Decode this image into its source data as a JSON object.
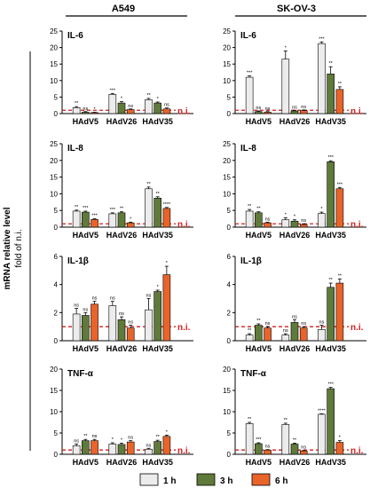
{
  "colors": {
    "1h": "#ececec",
    "3h": "#5f7a3a",
    "6h": "#e8642a",
    "ni_line": "#d21e1e",
    "axis": "#000000"
  },
  "column_titles": [
    "A549",
    "SK-OV-3"
  ],
  "y_axis_label": {
    "main": "mRNA relative level",
    "sub": "fold of n.i."
  },
  "ni_label": "n.i.",
  "legend": [
    {
      "key": "1h",
      "label": "1 h"
    },
    {
      "key": "3h",
      "label": "3 h"
    },
    {
      "key": "6h",
      "label": "6 h"
    }
  ],
  "chart_data": [
    {
      "type": "bar",
      "title": "IL-6",
      "cell_line": "A549",
      "categories": [
        "HAdV5",
        "HAdV26",
        "HAdV35"
      ],
      "yticks": [
        0,
        5,
        10,
        15,
        20,
        25
      ],
      "ylim": [
        0,
        25
      ],
      "series": [
        {
          "name": "1 h",
          "values": [
            1.8,
            5.8,
            4.2
          ],
          "err": [
            0.3,
            0.3,
            0.4
          ],
          "sig": [
            "**",
            "***",
            "**"
          ]
        },
        {
          "name": "3 h",
          "values": [
            0.4,
            3.2,
            3.2
          ],
          "err": [
            0.2,
            0.4,
            0.3
          ],
          "sig": [
            "ns",
            "*",
            "*"
          ]
        },
        {
          "name": "6 h",
          "values": [
            0.3,
            1.2,
            1.4
          ],
          "err": [
            0.1,
            0.2,
            0.3
          ],
          "sig": [
            "*",
            "ns",
            "ns"
          ]
        }
      ]
    },
    {
      "type": "bar",
      "title": "IL-6",
      "cell_line": "SK-OV-3",
      "categories": [
        "HAdV5",
        "HAdV26",
        "HAdV35"
      ],
      "yticks": [
        0,
        5,
        10,
        15,
        20,
        25
      ],
      "ylim": [
        0,
        25
      ],
      "series": [
        {
          "name": "1 h",
          "values": [
            11,
            16.5,
            21.2
          ],
          "err": [
            0.4,
            2.5,
            0.5
          ],
          "sig": [
            "***",
            "*",
            "***"
          ]
        },
        {
          "name": "3 h",
          "values": [
            0.6,
            0.8,
            12
          ],
          "err": [
            0.2,
            0.2,
            2.2
          ],
          "sig": [
            "ns",
            "ns",
            "**"
          ]
        },
        {
          "name": "6 h",
          "values": [
            0.4,
            0.9,
            7.3
          ],
          "err": [
            0.2,
            0.2,
            0.8
          ],
          "sig": [
            "ns",
            "ns",
            "**"
          ]
        }
      ]
    },
    {
      "type": "bar",
      "title": "IL-8",
      "cell_line": "A549",
      "categories": [
        "HAdV5",
        "HAdV26",
        "HAdV35"
      ],
      "yticks": [
        0,
        5,
        10,
        15,
        20,
        25
      ],
      "ylim": [
        0,
        25
      ],
      "series": [
        {
          "name": "1 h",
          "values": [
            4.8,
            4,
            11.5
          ],
          "err": [
            0.3,
            0.3,
            0.5
          ],
          "sig": [
            "**",
            "***",
            "**"
          ]
        },
        {
          "name": "3 h",
          "values": [
            4.5,
            4.3,
            8.7
          ],
          "err": [
            0.3,
            0.3,
            0.4
          ],
          "sig": [
            "***",
            "**",
            "**"
          ]
        },
        {
          "name": "6 h",
          "values": [
            2.3,
            1.3,
            5.6
          ],
          "err": [
            0.2,
            0.2,
            0.3
          ],
          "sig": [
            "***",
            "*",
            "****"
          ]
        }
      ]
    },
    {
      "type": "bar",
      "title": "IL-8",
      "cell_line": "SK-OV-3",
      "categories": [
        "HAdV5",
        "HAdV26",
        "HAdV35"
      ],
      "yticks": [
        0,
        5,
        10,
        15,
        20,
        25
      ],
      "ylim": [
        0,
        25
      ],
      "series": [
        {
          "name": "1 h",
          "values": [
            4.8,
            2.2,
            4.1
          ],
          "err": [
            0.5,
            0.6,
            0.4
          ],
          "sig": [
            "**",
            "*",
            "*"
          ]
        },
        {
          "name": "3 h",
          "values": [
            4.3,
            1.8,
            19.6
          ],
          "err": [
            0.3,
            0.4,
            0.3
          ],
          "sig": [
            "**",
            "*",
            "***"
          ]
        },
        {
          "name": "6 h",
          "values": [
            1.3,
            0.8,
            11.5
          ],
          "err": [
            0.2,
            0.2,
            0.4
          ],
          "sig": [
            "ns",
            "ns",
            "***"
          ]
        }
      ]
    },
    {
      "type": "bar",
      "title": "IL-1β",
      "cell_line": "A549",
      "categories": [
        "HAdV5",
        "HAdV26",
        "HAdV35"
      ],
      "yticks": [
        0,
        2,
        4,
        6
      ],
      "ylim": [
        0,
        6
      ],
      "series": [
        {
          "name": "1 h",
          "values": [
            1.9,
            2.5,
            2.2
          ],
          "err": [
            0.4,
            0.3,
            0.8
          ],
          "sig": [
            "ns",
            "ns",
            "ns"
          ]
        },
        {
          "name": "3 h",
          "values": [
            1.8,
            1.5,
            3.5
          ],
          "err": [
            0.2,
            0.2,
            0.1
          ],
          "sig": [
            "ns",
            "ns",
            "*"
          ]
        },
        {
          "name": "6 h",
          "values": [
            2.6,
            0.9,
            4.7
          ],
          "err": [
            0.2,
            0.2,
            0.6
          ],
          "sig": [
            "ns",
            "ns",
            "*"
          ]
        }
      ]
    },
    {
      "type": "bar",
      "title": "IL-1β",
      "cell_line": "SK-OV-3",
      "categories": [
        "HAdV5",
        "HAdV26",
        "HAdV35"
      ],
      "yticks": [
        0,
        2,
        4,
        6
      ],
      "ylim": [
        0,
        6
      ],
      "series": [
        {
          "name": "1 h",
          "values": [
            0.4,
            0.4,
            0.8
          ],
          "err": [
            0.1,
            0.1,
            0.3
          ],
          "sig": [
            "**",
            "ns",
            "ns"
          ]
        },
        {
          "name": "3 h",
          "values": [
            1.1,
            1.3,
            3.8
          ],
          "err": [
            0.1,
            0.2,
            0.3
          ],
          "sig": [
            "**",
            "ns",
            "**"
          ]
        },
        {
          "name": "6 h",
          "values": [
            0.9,
            0.9,
            4.1
          ],
          "err": [
            0.1,
            0.1,
            0.3
          ],
          "sig": [
            "ns",
            "ns",
            "**"
          ]
        }
      ]
    },
    {
      "type": "bar",
      "title": "TNF-α",
      "cell_line": "A549",
      "categories": [
        "HAdV5",
        "HAdV26",
        "HAdV35"
      ],
      "yticks": [
        0,
        5,
        10,
        15,
        20
      ],
      "ylim": [
        0,
        20
      ],
      "series": [
        {
          "name": "1 h",
          "values": [
            2,
            2.4,
            1.2
          ],
          "err": [
            0.4,
            0.3,
            0.2
          ],
          "sig": [
            "ns",
            "*",
            "ns"
          ]
        },
        {
          "name": "3 h",
          "values": [
            3.2,
            2.3,
            3
          ],
          "err": [
            0.3,
            0.3,
            0.3
          ],
          "sig": [
            "**",
            "*",
            "**"
          ]
        },
        {
          "name": "6 h",
          "values": [
            3.2,
            2.9,
            4.2
          ],
          "err": [
            0.3,
            0.3,
            0.3
          ],
          "sig": [
            "ns",
            "ns",
            "*"
          ]
        }
      ]
    },
    {
      "type": "bar",
      "title": "TNF-α",
      "cell_line": "SK-OV-3",
      "categories": [
        "HAdV5",
        "HAdV26",
        "HAdV35"
      ],
      "yticks": [
        0,
        5,
        10,
        15,
        20
      ],
      "ylim": [
        0,
        20
      ],
      "series": [
        {
          "name": "1 h",
          "values": [
            7.2,
            7,
            9.4
          ],
          "err": [
            0.3,
            0.3,
            0.1
          ],
          "sig": [
            "**",
            "**",
            "****"
          ]
        },
        {
          "name": "3 h",
          "values": [
            2.5,
            2.4,
            15.4
          ],
          "err": [
            0.2,
            0.2,
            0.3
          ],
          "sig": [
            "***",
            "**",
            "***"
          ]
        },
        {
          "name": "6 h",
          "values": [
            1,
            0.8,
            2.8
          ],
          "err": [
            0.1,
            0.1,
            0.4
          ],
          "sig": [
            "ns",
            "ns",
            "*"
          ]
        }
      ]
    }
  ]
}
